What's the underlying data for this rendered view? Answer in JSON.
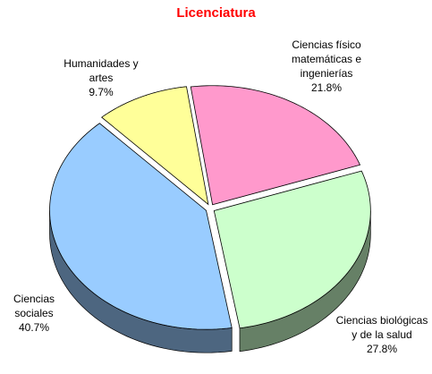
{
  "chart_data": {
    "type": "pie",
    "title": "Licenciatura",
    "categories": [
      "Ciencias físico matemáticas e ingenierías",
      "Ciencias biológicas y de la salud",
      "Ciencias sociales",
      "Humanidades y artes"
    ],
    "values": [
      21.8,
      27.8,
      40.7,
      9.7
    ],
    "value_labels": [
      "21.8%",
      "27.8%",
      "40.7%",
      "9.7%"
    ],
    "colors": [
      "#ff99cc",
      "#ccffcc",
      "#99ccff",
      "#ffff99"
    ]
  }
}
